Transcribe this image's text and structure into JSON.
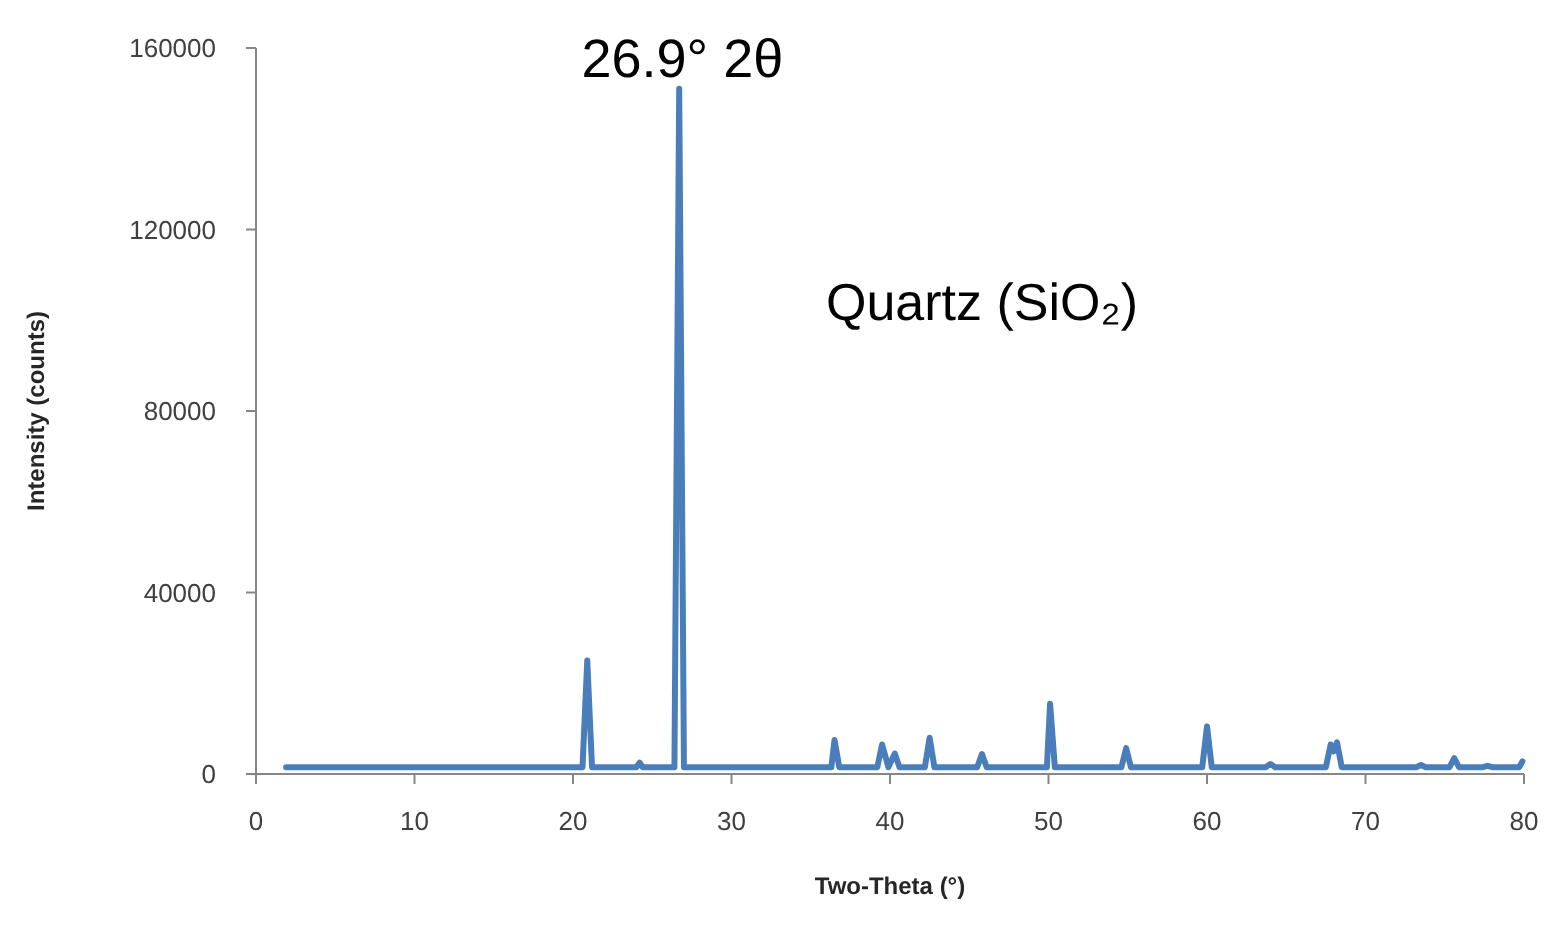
{
  "chart_data": {
    "type": "line",
    "xlabel": "Two-Theta (°)",
    "ylabel": "Intensity (counts)",
    "x": [
      1.9,
      10,
      20.6,
      20.9,
      21.2,
      24.0,
      24.2,
      24.4,
      26.4,
      26.7,
      27.0,
      36.3,
      36.5,
      36.8,
      39.2,
      39.5,
      39.9,
      40.3,
      40.6,
      42.2,
      42.5,
      42.8,
      45.5,
      45.8,
      46.1,
      49.9,
      50.1,
      50.4,
      54.6,
      54.9,
      55.2,
      59.7,
      60.0,
      60.3,
      63.7,
      64.0,
      64.3,
      67.5,
      67.8,
      68.0,
      68.2,
      68.5,
      73.2,
      73.5,
      73.8,
      75.3,
      75.6,
      75.9,
      77.4,
      77.7,
      78.0,
      79.7,
      79.9
    ],
    "series": [
      {
        "color": "#4a7ebb",
        "values": [
          1500,
          1500,
          1500,
          25000,
          1500,
          1500,
          2500,
          1500,
          1500,
          151000,
          1500,
          1500,
          7500,
          1500,
          1500,
          6500,
          1500,
          4500,
          1500,
          1500,
          8000,
          1500,
          1500,
          4400,
          1500,
          1500,
          15500,
          1500,
          1500,
          5700,
          1500,
          1500,
          10500,
          1500,
          1500,
          2200,
          1500,
          1500,
          6500,
          5000,
          7000,
          1500,
          1500,
          2000,
          1500,
          1500,
          3500,
          1500,
          1500,
          1800,
          1500,
          1500,
          2800
        ]
      }
    ],
    "xlim": [
      0,
      80
    ],
    "xticks": [
      0,
      10,
      20,
      30,
      40,
      50,
      60,
      70,
      80
    ],
    "ylim": [
      0,
      160000
    ],
    "yticks": [
      0,
      40000,
      80000,
      120000,
      160000
    ],
    "grid": false,
    "marker": "none",
    "line_style": "solid",
    "annotations": [
      {
        "text": "26.9° 2θ",
        "x": 26.9,
        "y": 151000
      },
      "Quartz (SiO₂)"
    ]
  }
}
